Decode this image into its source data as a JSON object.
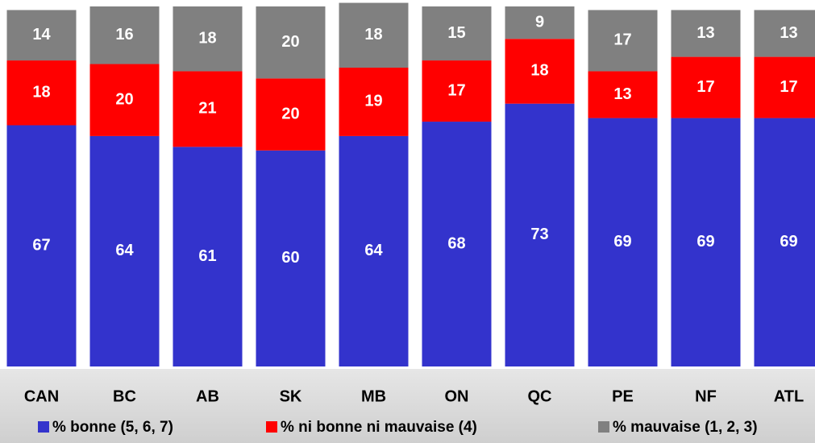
{
  "chart_data": {
    "type": "stacked_bar",
    "categories": [
      "CAN",
      "BC",
      "AB",
      "SK",
      "MB",
      "ON",
      "QC",
      "PE",
      "NF",
      "ATL"
    ],
    "series": [
      {
        "name": "% bonne (5, 6, 7)",
        "color": "#3333cc",
        "values": [
          67,
          64,
          61,
          60,
          64,
          68,
          73,
          69,
          69,
          69
        ]
      },
      {
        "name": "% ni bonne ni mauvaise (4)",
        "color": "#ff0000",
        "values": [
          18,
          20,
          21,
          20,
          19,
          17,
          18,
          13,
          17,
          17
        ]
      },
      {
        "name": "% mauvaise (1, 2, 3)",
        "color": "#808080",
        "values": [
          14,
          16,
          18,
          20,
          18,
          15,
          9,
          17,
          13,
          13
        ]
      }
    ],
    "ylim": [
      0,
      100
    ],
    "legend": "bottom"
  }
}
